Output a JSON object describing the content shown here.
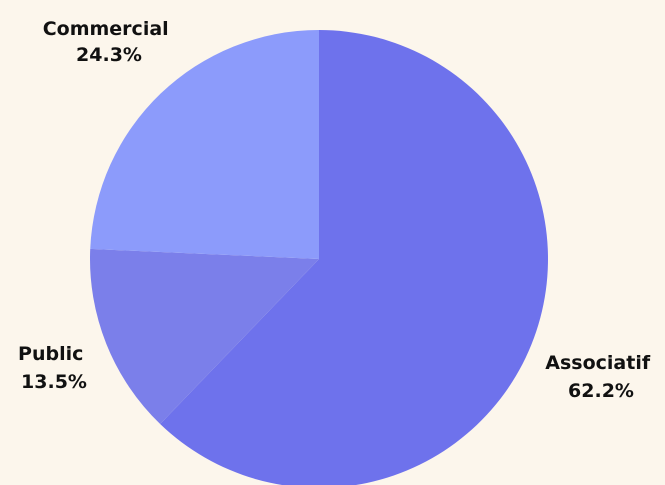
{
  "background": "#fcf6ec",
  "chart_data": {
    "type": "pie",
    "title": "",
    "start_angle_deg": 0,
    "direction": "clockwise",
    "slices": [
      {
        "label": "Associatif",
        "value": 62.2,
        "value_label": "62.2%",
        "color": "#6e72ec"
      },
      {
        "label": "Public",
        "value": 13.5,
        "value_label": "13.5%",
        "color": "#7b7fea"
      },
      {
        "label": "Commercial",
        "value": 24.3,
        "value_label": "24.3%",
        "color": "#8c9bfb"
      }
    ]
  }
}
